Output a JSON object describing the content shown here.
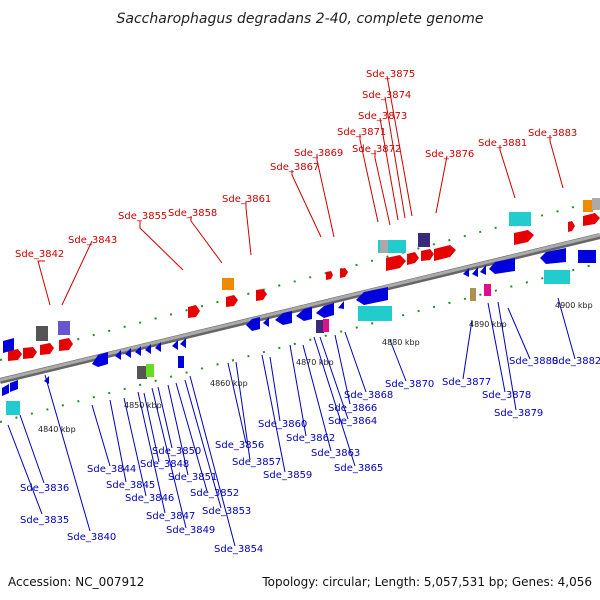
{
  "title": "Saccharophagus degradans 2-40, complete genome",
  "footer": {
    "accession_label": "Accession:",
    "accession": "NC_007912",
    "topology_text": "Topology: circular; Length: 5,057,531 bp; Genes: 4,056"
  },
  "ticks": [
    "4840 kbp",
    "4850 kbp",
    "4860 kbp",
    "4870 kbp",
    "4880 kbp",
    "4890 kbp",
    "4900 kbp"
  ],
  "colors": {
    "forward_gene": "#e60000",
    "reverse_gene": "#0000dd",
    "rna_cyan": "#22cccc",
    "backbone": "#888888",
    "top_label": "#cc0000",
    "bottom_label": "#0000bb",
    "track_dots": "#2a8a2a"
  },
  "labels_top": [
    "Sde_3842",
    "Sde_3843",
    "Sde_3855",
    "Sde_3858",
    "Sde_3861",
    "Sde_3867",
    "Sde_3869",
    "Sde_3871",
    "Sde_3872",
    "Sde_3873",
    "Sde_3874",
    "Sde_3875",
    "Sde_3876",
    "Sde_3881",
    "Sde_3883"
  ],
  "labels_bottom": [
    "Sde_3835",
    "Sde_3836",
    "Sde_3840",
    "Sde_3844",
    "Sde_3845",
    "Sde_3846",
    "Sde_3847",
    "Sde_3848",
    "Sde_3849",
    "Sde_3850",
    "Sde_3851",
    "Sde_3852",
    "Sde_3853",
    "Sde_3854",
    "Sde_3856",
    "Sde_3857",
    "Sde_3859",
    "Sde_3860",
    "Sde_3862",
    "Sde_3863",
    "Sde_3864",
    "Sde_3865",
    "Sde_3866",
    "Sde_3868",
    "Sde_3870",
    "Sde_3877",
    "Sde_3878",
    "Sde_3879",
    "Sde_3880",
    "Sde_3882"
  ]
}
